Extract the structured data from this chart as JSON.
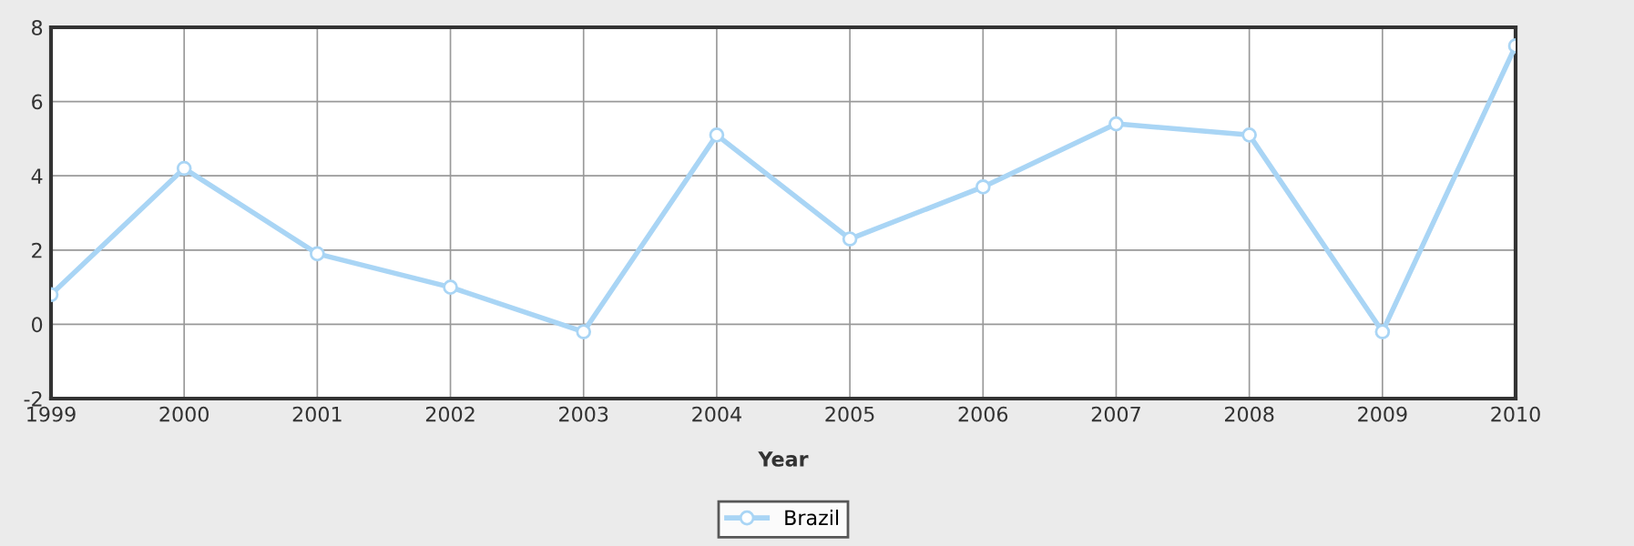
{
  "chart_data": {
    "type": "line",
    "xlabel": "Year",
    "x": [
      1999,
      2000,
      2001,
      2002,
      2003,
      2004,
      2005,
      2006,
      2007,
      2008,
      2009,
      2010
    ],
    "series": [
      {
        "name": "Brazil",
        "color": "#a9d5f5",
        "values": [
          0.8,
          4.2,
          1.9,
          1.0,
          -0.2,
          5.1,
          2.3,
          3.7,
          5.4,
          5.1,
          -0.2,
          7.5
        ]
      }
    ],
    "xlim": [
      1999,
      2010
    ],
    "xticks": [
      1999,
      2000,
      2001,
      2002,
      2003,
      2004,
      2005,
      2006,
      2007,
      2008,
      2009,
      2010
    ],
    "ylim": [
      -2,
      8
    ],
    "yticks": [
      -2,
      0,
      2,
      4,
      6,
      8
    ],
    "grid": true,
    "legend": "bottom",
    "marker": "circle",
    "line_style": "solid"
  }
}
